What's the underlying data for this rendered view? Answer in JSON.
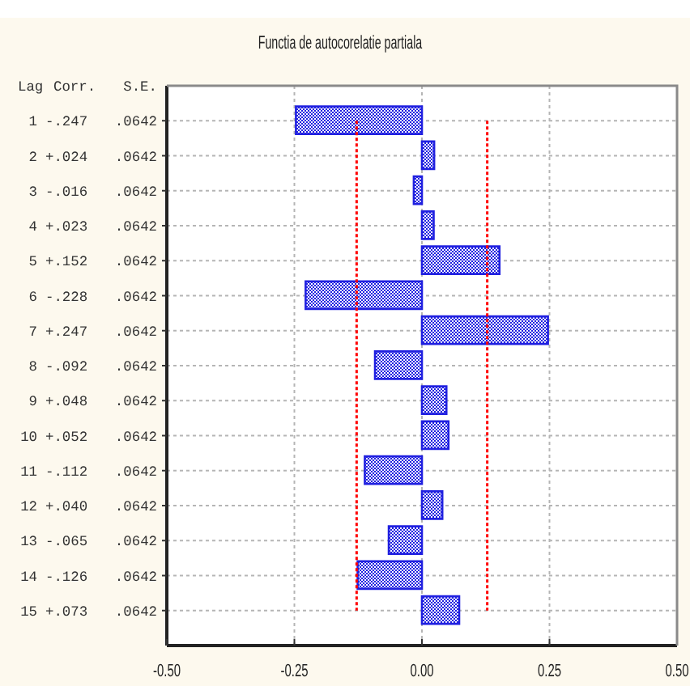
{
  "chart_data": {
    "type": "bar",
    "orientation": "horizontal",
    "title": "Functia de autocorelatie partiala",
    "ylabel": "Lag Corr. S.E.",
    "categories": [
      "1 -.247 .0642",
      "2 +.024 .0642",
      "3 -.016 .0642",
      "4 +.023 .0642",
      "5 +.152 .0642",
      "6 -.228 .0642",
      "7 +.247 .0642",
      "8 -.092 .0642",
      "9 +.048 .0642",
      "10 +.052 .0642",
      "11 -.112 .0642",
      "12 +.040 .0642",
      "13 -.065 .0642",
      "14 -.126 .0642",
      "15 +.073 .0642"
    ],
    "values": [
      -0.247,
      0.024,
      -0.016,
      0.023,
      0.152,
      -0.228,
      0.247,
      -0.092,
      0.048,
      0.052,
      -0.112,
      0.04,
      -0.065,
      -0.126,
      0.073
    ],
    "color": "#2020e0",
    "xlim": [
      -0.5,
      0.5
    ],
    "xticks": [
      {
        "value": -0.5,
        "label": "-0.50"
      },
      {
        "value": -0.25,
        "label": "-0.25"
      },
      {
        "value": 0,
        "label": "0.00"
      },
      {
        "value": 0.25,
        "label": "0.25"
      },
      {
        "value": 0.5,
        "label": "0.50"
      }
    ],
    "grid": true,
    "ref_lines": [
      {
        "axis": "x",
        "value": -0.128,
        "color": "#ff0000",
        "line_style": "dotted"
      },
      {
        "axis": "x",
        "value": 0.128,
        "color": "#ff0000",
        "line_style": "dotted"
      }
    ]
  }
}
